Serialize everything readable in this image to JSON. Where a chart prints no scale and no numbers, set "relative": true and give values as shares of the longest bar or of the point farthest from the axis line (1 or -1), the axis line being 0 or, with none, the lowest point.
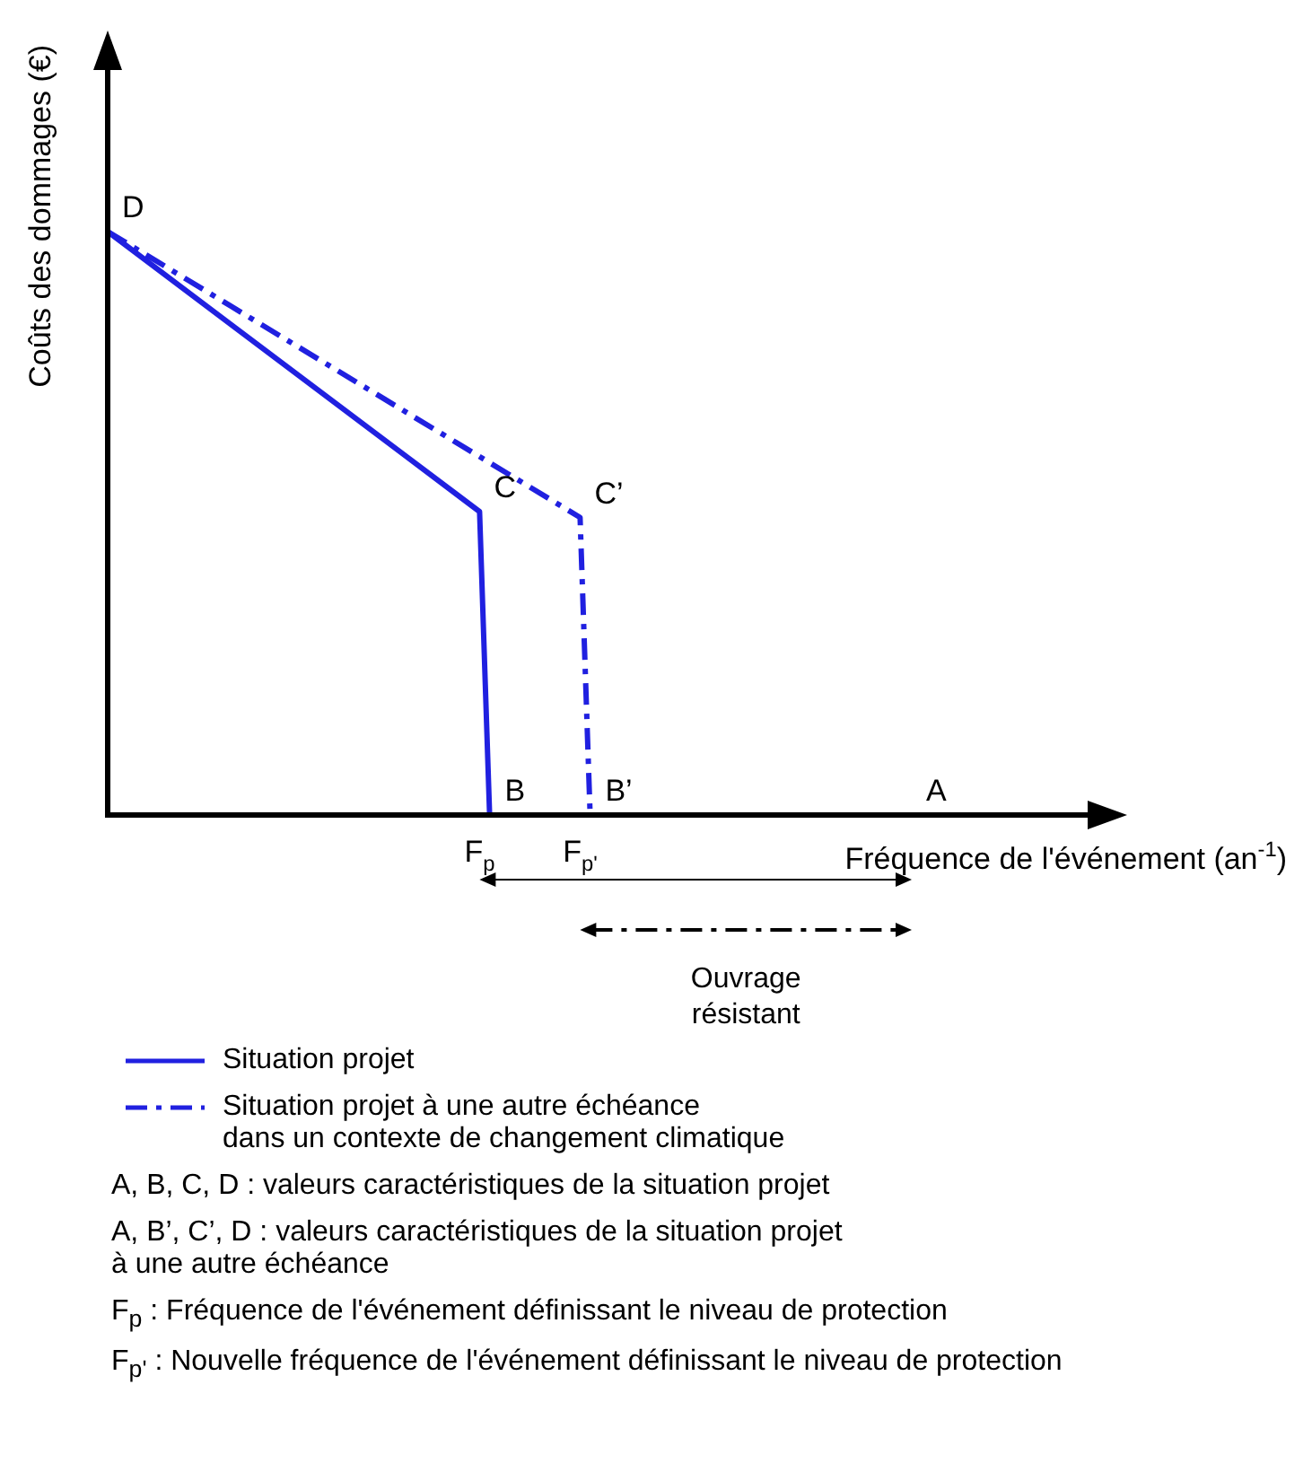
{
  "chart_data": {
    "type": "line",
    "relative": true,
    "ylabel": "Coûts des dommages (€)",
    "xlabel": "Fréquence de l'événement (an$^{-1}$)",
    "legend": "bottom",
    "marker": "none",
    "categories": [
      null,
      null,
      null,
      null,
      null,
      null,
      null,
      null,
      null,
      null,
      null,
      null,
      null,
      null,
      null,
      null,
      null,
      null,
      null,
      null,
      null,
      null,
      null,
      null,
      null,
      null,
      null,
      null,
      null,
      null,
      null,
      null,
      null,
      null,
      null,
      null,
      null,
      "F$_{p}$",
      null,
      null,
      null,
      null,
      null,
      null,
      null,
      null,
      null,
      "F$_{p'}$",
      null,
      null,
      null,
      null,
      null,
      null,
      null,
      null,
      null,
      null,
      null,
      null,
      null,
      null,
      null,
      null,
      null,
      null,
      null,
      null,
      null,
      null,
      null,
      null,
      null,
      null,
      null,
      null,
      null,
      null,
      null,
      null,
      null
    ],
    "series": [
      {
        "name": "Situation projet",
        "color": "#2020e0",
        "line_style": "solid",
        "values": [
          1,
          null,
          null,
          null,
          null,
          null,
          null,
          null,
          null,
          null,
          null,
          null,
          null,
          null,
          null,
          null,
          null,
          null,
          null,
          null,
          null,
          null,
          null,
          null,
          null,
          null,
          null,
          null,
          null,
          null,
          null,
          null,
          null,
          null,
          null,
          null,
          null,
          0.52,
          0,
          null,
          null,
          null,
          null,
          null,
          null,
          null,
          null,
          null,
          null,
          null,
          null,
          null,
          null,
          null,
          null,
          null,
          null,
          null,
          null,
          null,
          null,
          null,
          null,
          null,
          null,
          null,
          null,
          null,
          null,
          null,
          null,
          null,
          null,
          null,
          null,
          null,
          null,
          null,
          null,
          null,
          0
        ]
      },
      {
        "name": "Situation projet à une autre échéance\ndans un contexte de changement climatique",
        "color": "#2020e0",
        "line_style": "dashed",
        "values": [
          1,
          null,
          null,
          null,
          null,
          null,
          null,
          null,
          null,
          null,
          null,
          null,
          null,
          null,
          null,
          null,
          null,
          null,
          null,
          null,
          null,
          null,
          null,
          null,
          null,
          null,
          null,
          null,
          null,
          null,
          null,
          null,
          null,
          null,
          null,
          null,
          null,
          null,
          null,
          null,
          null,
          null,
          null,
          null,
          null,
          null,
          null,
          0.51,
          0,
          null,
          null,
          null,
          null,
          null,
          null,
          null,
          null,
          null,
          null,
          null,
          null,
          null,
          null,
          null,
          null,
          null,
          null,
          null,
          null,
          null,
          null,
          null,
          null,
          null,
          null,
          null,
          null,
          null,
          null,
          null,
          0
        ]
      }
    ],
    "annotations": [
      "D",
      "A",
      {
        "text": "C",
        "x": "F$_{p}$",
        "y": 0.52
      },
      {
        "text": "B",
        "x": "F$_{p}$",
        "y": 0
      },
      {
        "text": "C’",
        "x": "F$_{p'}$",
        "y": 0.51
      },
      {
        "text": "B’",
        "x": "F$_{p'}$",
        "y": 0
      },
      "Ouvrage\nrésistant",
      "A, B, C, D : valeurs caractéristiques de la situation projet",
      "A, B’, C’, D : valeurs caractéristiques de la situation projet\nà une autre échéance",
      "F$_{p}$ : Fréquence de l'événement définissant le niveau de protection",
      "F$_{p'}$ : Nouvelle fréquence de l'événement définissant le niveau de protection"
    ]
  }
}
